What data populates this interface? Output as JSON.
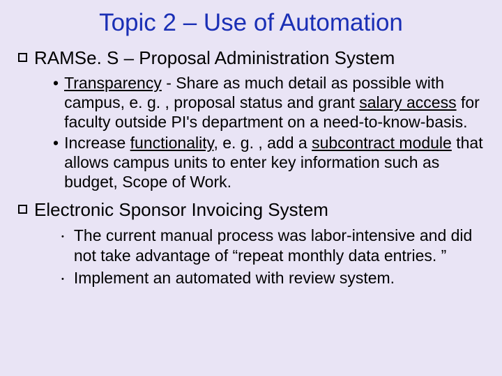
{
  "colors": {
    "background": "#e9e4f5",
    "title": "#1a2fb5",
    "body_text": "#000000",
    "underline": "#000000"
  },
  "typography": {
    "family": "Comic Sans MS",
    "title_size_pt": 35,
    "section_size_pt": 26,
    "body_size_pt": 23
  },
  "title": "Topic 2 – Use of Automation",
  "sections": [
    {
      "heading": "RAMSe. S – Proposal Administration System",
      "bullets": [
        {
          "style": "disc",
          "runs": [
            {
              "t": "Transparency",
              "u": true
            },
            {
              "t": " - Share as much detail as possible with campus, e. g. , proposal status and grant "
            },
            {
              "t": "salary access",
              "u": true
            },
            {
              "t": " for faculty outside PI's department on a need-to-know-basis."
            }
          ]
        },
        {
          "style": "disc",
          "runs": [
            {
              "t": "Increase "
            },
            {
              "t": "functionality",
              "u": true
            },
            {
              "t": ", e. g. , add a "
            },
            {
              "t": "subcontract module",
              "u": true
            },
            {
              "t": " that allows campus units to enter key information such as budget, Scope of Work."
            }
          ]
        }
      ]
    },
    {
      "heading": "Electronic Sponsor Invoicing System",
      "bullets": [
        {
          "style": "small",
          "runs": [
            {
              "t": "The current manual process was labor-intensive and did not take advantage of “repeat monthly data entries. ”"
            }
          ]
        },
        {
          "style": "small",
          "runs": [
            {
              "t": " Implement an automated with review system."
            }
          ]
        }
      ]
    }
  ]
}
